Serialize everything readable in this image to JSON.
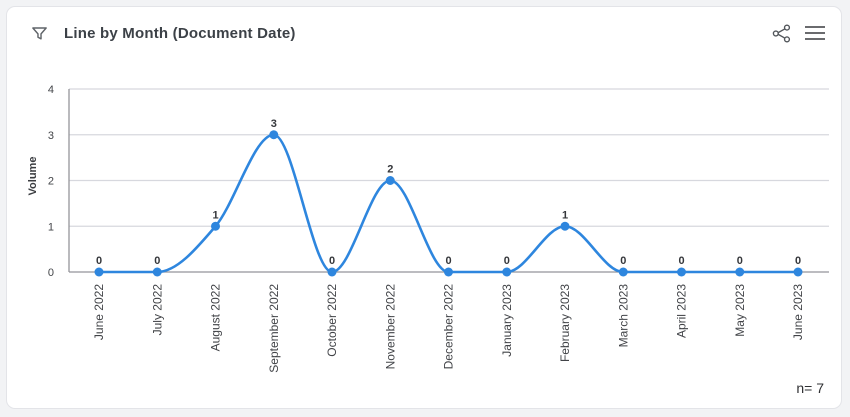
{
  "header": {
    "title": "Line by Month (Document Date)",
    "icons": {
      "filter": "funnel-filter-icon",
      "share": "share-nodes-icon",
      "menu": "hamburger-menu-icon"
    }
  },
  "footer": {
    "n_label": "n= 7"
  },
  "colors": {
    "accent_line": "#2e86de",
    "point_fill": "#2e86de",
    "grid": "#d7d8de",
    "axis": "#94959a",
    "tick_text": "#424448",
    "value_label_text": "#35373b",
    "title_text": "#3c4147",
    "card_bg": "#ffffff",
    "page_bg": "#f2f3f5"
  },
  "chart_data": {
    "type": "line",
    "title": "Line by Month (Document Date)",
    "categories": [
      "June 2022",
      "July 2022",
      "August 2022",
      "September 2022",
      "October 2022",
      "November 2022",
      "December 2022",
      "January 2023",
      "February 2023",
      "March 2023",
      "April 2023",
      "May 2023",
      "June 2023"
    ],
    "values": [
      0,
      0,
      1,
      3,
      0,
      2,
      0,
      0,
      1,
      0,
      0,
      0,
      0
    ],
    "xlabel": "",
    "ylabel": "Volume",
    "ylim": [
      0,
      4
    ],
    "yticks": [
      0,
      1,
      2,
      3,
      4
    ],
    "grid": true,
    "legend": "none",
    "smoothing": "monotone",
    "point_labels_shown": true,
    "n_annotation": "n= 7"
  }
}
